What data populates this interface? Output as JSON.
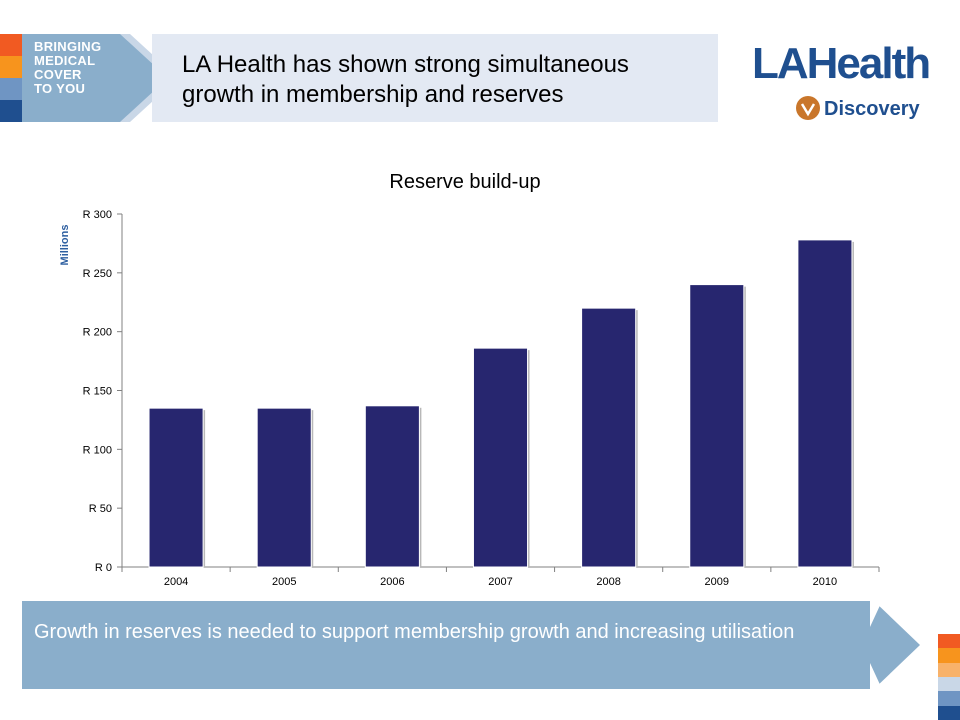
{
  "header": {
    "tagline": [
      "BRINGING",
      "MEDICAL",
      "COVER",
      "TO YOU"
    ],
    "title": "LA Health has shown strong simultaneous growth in membership and reserves"
  },
  "logo": {
    "brand": "LAHealth",
    "sub": "Discovery"
  },
  "footer": {
    "message": "Growth in reserves is needed to support membership growth and increasing utilisation"
  },
  "colors": {
    "bar": "#27266f",
    "banner": "#8aaecb",
    "orange": "#f08a24",
    "dark_blue": "#1f4f8f"
  },
  "chart_data": {
    "type": "bar",
    "title": "Reserve build-up",
    "ylabel": "Millions",
    "categories": [
      "2004",
      "2005",
      "2006",
      "2007",
      "2008",
      "2009",
      "2010"
    ],
    "values": [
      135,
      135,
      137,
      186,
      220,
      240,
      278
    ],
    "ylim": [
      0,
      300
    ],
    "yticks": [
      0,
      50,
      100,
      150,
      200,
      250,
      300
    ],
    "ytick_labels": [
      "R 0",
      "R 50",
      "R 100",
      "R 150",
      "R 200",
      "R 250",
      "R 300"
    ],
    "grid": false,
    "legend": "none"
  }
}
